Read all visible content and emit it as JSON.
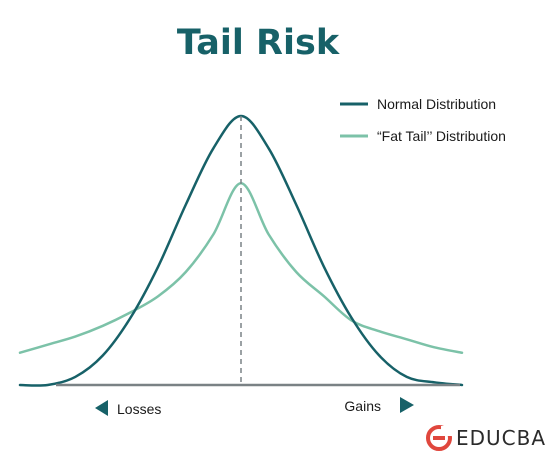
{
  "chart_data": {
    "type": "line",
    "title": "Tail Risk",
    "xlim": [
      -4,
      4
    ],
    "ylim": [
      0,
      1
    ],
    "series": [
      {
        "name": "Normal Distribution",
        "color": "#176168",
        "x": [
          -4,
          -3.5,
          -3,
          -2.5,
          -2,
          -1.5,
          -1,
          -0.5,
          0,
          0.5,
          1,
          1.5,
          2,
          2.5,
          3,
          3.5,
          4
        ],
        "y": [
          0.0,
          0.0,
          0.03,
          0.11,
          0.25,
          0.44,
          0.67,
          0.88,
          1.0,
          0.88,
          0.67,
          0.44,
          0.25,
          0.11,
          0.03,
          0.01,
          0.0
        ]
      },
      {
        "name": "“Fat Tail’’ Distribution",
        "color": "#7cc2a8",
        "x": [
          -4,
          -3.5,
          -3,
          -2.5,
          -2,
          -1.5,
          -1,
          -0.5,
          0,
          0.5,
          1,
          1.5,
          2,
          2.5,
          3,
          3.5,
          4
        ],
        "y": [
          0.12,
          0.15,
          0.18,
          0.22,
          0.27,
          0.33,
          0.42,
          0.56,
          0.75,
          0.56,
          0.42,
          0.33,
          0.24,
          0.2,
          0.17,
          0.14,
          0.12
        ]
      }
    ],
    "legend": {
      "position": "top-right"
    },
    "x_labels": {
      "left": "Losses",
      "right": "Gains"
    },
    "grid": false
  },
  "colors": {
    "title": "#176168",
    "axis": "#7a8285",
    "arrow": "#176168",
    "logo_icon": "#e0473d",
    "logo_text": "#2b2b2b"
  },
  "logo": {
    "icon": "educba-logo-icon",
    "text": "EDUCBA"
  }
}
